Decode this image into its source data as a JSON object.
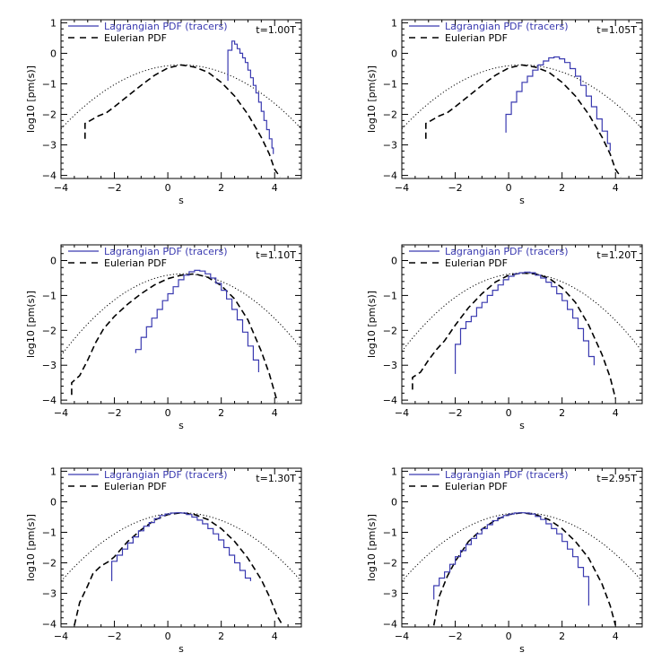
{
  "chart_data": [
    {
      "type": "line",
      "time_label": "t=1.00T",
      "xlabel": "s",
      "ylabel": "log10 [pm(s)]",
      "xlim": [
        -4,
        5
      ],
      "ylim": [
        -4.1,
        1.1
      ],
      "xticks": [
        -4,
        -2,
        0,
        2,
        4
      ],
      "yticks": [
        -4,
        -3,
        -2,
        -1,
        0,
        1
      ],
      "legend": [
        "Lagrangian PDF (tracers)",
        "Eulerian PDF"
      ],
      "lagrangian": {
        "x": [
          2.25,
          2.25,
          2.4,
          2.5,
          2.6,
          2.7,
          2.8,
          2.9,
          3.0,
          3.1,
          3.2,
          3.3,
          3.4,
          3.5,
          3.6,
          3.7,
          3.8,
          3.9,
          3.95
        ],
        "y": [
          -0.9,
          0.1,
          0.4,
          0.3,
          0.15,
          0.0,
          -0.15,
          -0.3,
          -0.55,
          -0.8,
          -1.05,
          -1.3,
          -1.6,
          -1.9,
          -2.2,
          -2.5,
          -2.8,
          -3.1,
          -3.3
        ]
      },
      "eulerian": {
        "x": [
          -3.1,
          -3.1,
          -2.9,
          -2.6,
          -2.3,
          -2.0,
          -1.5,
          -1.0,
          -0.5,
          0.0,
          0.5,
          1.0,
          1.5,
          2.0,
          2.5,
          3.0,
          3.5,
          3.8,
          4.0,
          4.2
        ],
        "y": [
          -2.8,
          -2.3,
          -2.2,
          -2.05,
          -1.95,
          -1.75,
          -1.4,
          -1.05,
          -0.72,
          -0.48,
          -0.38,
          -0.45,
          -0.62,
          -0.95,
          -1.4,
          -2.0,
          -2.75,
          -3.3,
          -3.8,
          -4.05
        ]
      },
      "gaussian": {
        "mu": 0.5,
        "sigma": 1.45,
        "peak": -0.38
      }
    },
    {
      "type": "line",
      "time_label": "t=1.05T",
      "xlabel": "s",
      "ylabel": "log10 [pm(s)]",
      "xlim": [
        -4,
        5
      ],
      "ylim": [
        -4.1,
        1.1
      ],
      "xticks": [
        -4,
        -2,
        0,
        2,
        4
      ],
      "yticks": [
        -4,
        -3,
        -2,
        -1,
        0,
        1
      ],
      "legend": [
        "Lagrangian PDF (tracers)",
        "Eulerian PDF"
      ],
      "lagrangian": {
        "x": [
          -0.1,
          -0.1,
          0.1,
          0.3,
          0.5,
          0.7,
          0.9,
          1.1,
          1.3,
          1.5,
          1.7,
          1.9,
          2.1,
          2.3,
          2.5,
          2.7,
          2.9,
          3.1,
          3.3,
          3.5,
          3.7,
          3.8
        ],
        "y": [
          -2.6,
          -2.0,
          -1.6,
          -1.25,
          -0.95,
          -0.75,
          -0.55,
          -0.38,
          -0.25,
          -0.15,
          -0.12,
          -0.18,
          -0.3,
          -0.5,
          -0.75,
          -1.05,
          -1.4,
          -1.75,
          -2.15,
          -2.55,
          -2.95,
          -3.2
        ]
      },
      "eulerian": {
        "x": [
          -3.1,
          -3.1,
          -2.9,
          -2.6,
          -2.3,
          -2.0,
          -1.5,
          -1.0,
          -0.5,
          0.0,
          0.5,
          1.0,
          1.5,
          2.0,
          2.5,
          3.0,
          3.5,
          3.8,
          4.0,
          4.2
        ],
        "y": [
          -2.8,
          -2.3,
          -2.2,
          -2.05,
          -1.95,
          -1.75,
          -1.4,
          -1.05,
          -0.72,
          -0.48,
          -0.38,
          -0.45,
          -0.62,
          -0.95,
          -1.4,
          -2.0,
          -2.75,
          -3.3,
          -3.8,
          -4.05
        ]
      },
      "gaussian": {
        "mu": 0.5,
        "sigma": 1.45,
        "peak": -0.38
      }
    },
    {
      "type": "line",
      "time_label": "t=1.10T",
      "xlabel": "s",
      "ylabel": "log10 [pm(s)]",
      "xlim": [
        -4,
        5
      ],
      "ylim": [
        -4.1,
        0.45
      ],
      "xticks": [
        -4,
        -2,
        0,
        2,
        4
      ],
      "yticks": [
        -4,
        -3,
        -2,
        -1,
        0
      ],
      "legend": [
        "Lagrangian PDF (tracers)",
        "Eulerian PDF"
      ],
      "lagrangian": {
        "x": [
          -1.2,
          -1.2,
          -1.0,
          -0.8,
          -0.6,
          -0.4,
          -0.2,
          0.0,
          0.2,
          0.4,
          0.6,
          0.8,
          1.0,
          1.2,
          1.4,
          1.6,
          1.8,
          2.0,
          2.2,
          2.4,
          2.6,
          2.8,
          3.0,
          3.2,
          3.4
        ],
        "y": [
          -2.65,
          -2.55,
          -2.2,
          -1.9,
          -1.65,
          -1.4,
          -1.15,
          -0.95,
          -0.75,
          -0.55,
          -0.42,
          -0.32,
          -0.28,
          -0.3,
          -0.38,
          -0.5,
          -0.65,
          -0.85,
          -1.1,
          -1.4,
          -1.7,
          -2.05,
          -2.45,
          -2.85,
          -3.2
        ]
      },
      "eulerian": {
        "x": [
          -3.6,
          -3.6,
          -3.3,
          -3.0,
          -2.7,
          -2.4,
          -2.0,
          -1.5,
          -1.0,
          -0.5,
          0.0,
          0.5,
          1.0,
          1.5,
          2.0,
          2.5,
          3.0,
          3.5,
          3.8,
          4.1
        ],
        "y": [
          -3.85,
          -3.5,
          -3.3,
          -2.85,
          -2.35,
          -1.95,
          -1.6,
          -1.25,
          -0.95,
          -0.7,
          -0.52,
          -0.42,
          -0.38,
          -0.48,
          -0.72,
          -1.1,
          -1.7,
          -2.6,
          -3.25,
          -4.05
        ]
      },
      "gaussian": {
        "mu": 0.6,
        "sigma": 1.4,
        "peak": -0.38
      }
    },
    {
      "type": "line",
      "time_label": "t=1.20T",
      "xlabel": "s",
      "ylabel": "log10 [pm(s)]",
      "xlim": [
        -4,
        5
      ],
      "ylim": [
        -4.1,
        0.45
      ],
      "xticks": [
        -4,
        -2,
        0,
        2,
        4
      ],
      "yticks": [
        -4,
        -3,
        -2,
        -1,
        0
      ],
      "legend": [
        "Lagrangian PDF (tracers)",
        "Eulerian PDF"
      ],
      "lagrangian": {
        "x": [
          -2.0,
          -2.0,
          -1.8,
          -1.6,
          -1.4,
          -1.2,
          -1.0,
          -0.8,
          -0.6,
          -0.4,
          -0.2,
          0.0,
          0.2,
          0.4,
          0.6,
          0.8,
          1.0,
          1.2,
          1.4,
          1.6,
          1.8,
          2.0,
          2.2,
          2.4,
          2.6,
          2.8,
          3.0,
          3.2
        ],
        "y": [
          -3.25,
          -2.4,
          -1.95,
          -1.75,
          -1.6,
          -1.35,
          -1.2,
          -1.0,
          -0.85,
          -0.7,
          -0.55,
          -0.45,
          -0.38,
          -0.35,
          -0.33,
          -0.35,
          -0.42,
          -0.5,
          -0.62,
          -0.75,
          -0.95,
          -1.15,
          -1.4,
          -1.65,
          -1.95,
          -2.3,
          -2.75,
          -3.0
        ]
      },
      "eulerian": {
        "x": [
          -3.6,
          -3.6,
          -3.3,
          -3.0,
          -2.7,
          -2.4,
          -2.0,
          -1.5,
          -1.0,
          -0.5,
          0.0,
          0.5,
          1.0,
          1.5,
          2.0,
          2.5,
          3.0,
          3.5,
          3.8,
          4.0
        ],
        "y": [
          -3.7,
          -3.35,
          -3.2,
          -2.85,
          -2.55,
          -2.3,
          -1.85,
          -1.35,
          -0.95,
          -0.62,
          -0.42,
          -0.36,
          -0.38,
          -0.5,
          -0.78,
          -1.2,
          -1.85,
          -2.7,
          -3.35,
          -3.95
        ]
      },
      "gaussian": {
        "mu": 0.5,
        "sigma": 1.4,
        "peak": -0.36
      }
    },
    {
      "type": "line",
      "time_label": "t=1.30T",
      "xlabel": "s",
      "ylabel": "log10 [pm(s)]",
      "xlim": [
        -4,
        5
      ],
      "ylim": [
        -4.1,
        1.1
      ],
      "xticks": [
        -4,
        -2,
        0,
        2,
        4
      ],
      "yticks": [
        -4,
        -3,
        -2,
        -1,
        0,
        1
      ],
      "legend": [
        "Lagrangian PDF (tracers)",
        "Eulerian PDF"
      ],
      "lagrangian": {
        "x": [
          -2.1,
          -2.1,
          -1.9,
          -1.7,
          -1.5,
          -1.3,
          -1.1,
          -0.9,
          -0.7,
          -0.5,
          -0.3,
          -0.1,
          0.1,
          0.3,
          0.5,
          0.7,
          0.9,
          1.1,
          1.3,
          1.5,
          1.7,
          1.9,
          2.1,
          2.3,
          2.5,
          2.7,
          2.9,
          3.1
        ],
        "y": [
          -2.6,
          -1.95,
          -1.75,
          -1.55,
          -1.35,
          -1.15,
          -0.95,
          -0.8,
          -0.68,
          -0.55,
          -0.45,
          -0.4,
          -0.37,
          -0.36,
          -0.37,
          -0.42,
          -0.5,
          -0.6,
          -0.72,
          -0.88,
          -1.05,
          -1.25,
          -1.5,
          -1.75,
          -2.0,
          -2.25,
          -2.5,
          -2.6
        ]
      },
      "eulerian": {
        "x": [
          -3.5,
          -3.3,
          -3.0,
          -2.8,
          -2.5,
          -2.2,
          -2.0,
          -1.5,
          -1.0,
          -0.5,
          0.0,
          0.5,
          1.0,
          1.5,
          2.0,
          2.5,
          3.0,
          3.5,
          3.8,
          4.1,
          4.3
        ],
        "y": [
          -4.05,
          -3.3,
          -2.75,
          -2.35,
          -2.1,
          -1.95,
          -1.8,
          -1.3,
          -0.92,
          -0.6,
          -0.42,
          -0.36,
          -0.42,
          -0.58,
          -0.88,
          -1.3,
          -1.85,
          -2.55,
          -3.1,
          -3.75,
          -4.05
        ]
      },
      "gaussian": {
        "mu": 0.5,
        "sigma": 1.4,
        "peak": -0.36
      }
    },
    {
      "type": "line",
      "time_label": "t=2.95T",
      "xlabel": "s",
      "ylabel": "log10 [pm(s)]",
      "xlim": [
        -4,
        5
      ],
      "ylim": [
        -4.1,
        1.1
      ],
      "xticks": [
        -4,
        -2,
        0,
        2,
        4
      ],
      "yticks": [
        -4,
        -3,
        -2,
        -1,
        0,
        1
      ],
      "legend": [
        "Lagrangian PDF (tracers)",
        "Eulerian PDF"
      ],
      "lagrangian": {
        "x": [
          -2.8,
          -2.8,
          -2.6,
          -2.4,
          -2.2,
          -2.0,
          -1.8,
          -1.6,
          -1.4,
          -1.2,
          -1.0,
          -0.8,
          -0.6,
          -0.4,
          -0.2,
          0.0,
          0.2,
          0.4,
          0.6,
          0.8,
          1.0,
          1.2,
          1.4,
          1.6,
          1.8,
          2.0,
          2.2,
          2.4,
          2.6,
          2.8,
          3.0,
          3.0
        ],
        "y": [
          -3.2,
          -2.75,
          -2.5,
          -2.3,
          -2.05,
          -1.8,
          -1.6,
          -1.4,
          -1.2,
          -1.05,
          -0.88,
          -0.75,
          -0.62,
          -0.52,
          -0.45,
          -0.4,
          -0.37,
          -0.36,
          -0.37,
          -0.4,
          -0.48,
          -0.58,
          -0.72,
          -0.88,
          -1.05,
          -1.3,
          -1.55,
          -1.8,
          -2.15,
          -2.45,
          -2.6,
          -3.4
        ]
      },
      "eulerian": {
        "x": [
          -2.8,
          -2.6,
          -2.3,
          -2.0,
          -1.5,
          -1.0,
          -0.5,
          0.0,
          0.5,
          1.0,
          1.5,
          2.0,
          2.5,
          3.0,
          3.5,
          3.8,
          4.0
        ],
        "y": [
          -4.05,
          -3.1,
          -2.45,
          -1.95,
          -1.3,
          -0.9,
          -0.6,
          -0.42,
          -0.36,
          -0.42,
          -0.58,
          -0.88,
          -1.3,
          -1.85,
          -2.7,
          -3.4,
          -4.05
        ]
      },
      "gaussian": {
        "mu": 0.5,
        "sigma": 1.4,
        "peak": -0.36
      }
    }
  ],
  "colors": {
    "lagrangian": "#3a3ab0",
    "eulerian": "#000000",
    "gaussian": "#000000"
  }
}
